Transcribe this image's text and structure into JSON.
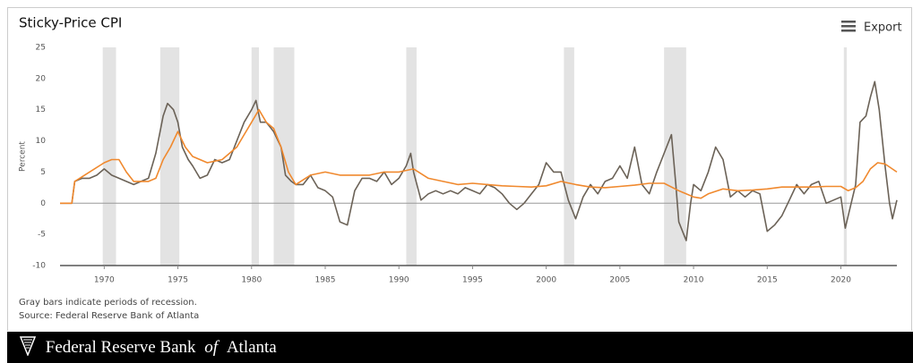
{
  "chart_data": {
    "type": "line",
    "title": "Sticky-Price CPI",
    "export_label": "Export",
    "ylabel": "Percent",
    "notes": [
      "Gray bars indicate periods of recession.",
      "Source: Federal Reserve Bank of Atlanta"
    ],
    "footer": [
      "Federal Reserve Bank",
      "of",
      "Atlanta"
    ],
    "xlim": [
      1967,
      2023.8
    ],
    "xticks": [
      1970,
      1975,
      1980,
      1985,
      1990,
      1995,
      2000,
      2005,
      2010,
      2015,
      2020
    ],
    "ylim": [
      -10,
      25
    ],
    "yticks": [
      -10,
      -5,
      0,
      5,
      10,
      15,
      20,
      25
    ],
    "recession_color": "#e3e3e3",
    "recessions": [
      [
        1969.9,
        1970.8
      ],
      [
        1973.8,
        1975.1
      ],
      [
        1980.0,
        1980.5
      ],
      [
        1981.5,
        1982.9
      ],
      [
        1990.5,
        1991.2
      ],
      [
        2001.2,
        2001.9
      ],
      [
        2008.0,
        2009.5
      ],
      [
        2020.2,
        2020.4
      ]
    ],
    "series": [
      {
        "color": "#6b6257",
        "x": [
          1967,
          1967.8,
          1968,
          1968.5,
          1969,
          1969.5,
          1970,
          1970.5,
          1971,
          1971.5,
          1972,
          1972.5,
          1973,
          1973.5,
          1974,
          1974.3,
          1974.7,
          1975,
          1975.3,
          1975.7,
          1976,
          1976.5,
          1977,
          1977.5,
          1978,
          1978.5,
          1979,
          1979.5,
          1980,
          1980.3,
          1980.6,
          1981,
          1981.5,
          1982,
          1982.3,
          1982.7,
          1983,
          1983.5,
          1984,
          1984.5,
          1985,
          1985.5,
          1986,
          1986.5,
          1987,
          1987.5,
          1988,
          1988.5,
          1989,
          1989.5,
          1990,
          1990.5,
          1990.8,
          1991,
          1991.5,
          1992,
          1992.5,
          1993,
          1993.5,
          1994,
          1994.5,
          1995,
          1995.5,
          1996,
          1996.5,
          1997,
          1997.5,
          1998,
          1998.5,
          1999,
          1999.5,
          2000,
          2000.5,
          2001,
          2001.5,
          2002,
          2002.5,
          2003,
          2003.5,
          2004,
          2004.5,
          2005,
          2005.5,
          2006,
          2006.5,
          2007,
          2007.5,
          2008,
          2008.5,
          2008.8,
          2009,
          2009.5,
          2009.8,
          2010,
          2010.5,
          2011,
          2011.5,
          2012,
          2012.5,
          2013,
          2013.5,
          2014,
          2014.5,
          2015,
          2015.5,
          2016,
          2016.5,
          2017,
          2017.5,
          2018,
          2018.5,
          2019,
          2019.5,
          2020,
          2020.3,
          2020.7,
          2021,
          2021.3,
          2021.7,
          2022,
          2022.3,
          2022.6,
          2023,
          2023.3,
          2023.5,
          2023.8
        ],
        "values": [
          0,
          0,
          3.5,
          4,
          4,
          4.5,
          5.5,
          4.5,
          4,
          3.5,
          3,
          3.5,
          4,
          8,
          14,
          16,
          15,
          13,
          9,
          7,
          6,
          4,
          4.5,
          7,
          6.5,
          7,
          10,
          13,
          15,
          16.5,
          13,
          13,
          11.5,
          9,
          4.5,
          3.5,
          3,
          3,
          4.5,
          2.5,
          2,
          1,
          -3,
          -3.5,
          2,
          4,
          4,
          3.5,
          5,
          3,
          4,
          6,
          8,
          5,
          0.5,
          1.5,
          2,
          1.5,
          2,
          1.5,
          2.5,
          2,
          1.5,
          3,
          2.5,
          1.5,
          0,
          -1,
          0,
          1.5,
          3,
          6.5,
          5,
          5,
          0.5,
          -2.5,
          1,
          3,
          1.5,
          3.5,
          4,
          6,
          4,
          9,
          3,
          1.5,
          5,
          8,
          11,
          3,
          -3,
          -6,
          0,
          3,
          2,
          5,
          9,
          7,
          1,
          2,
          1,
          2,
          1.5,
          -4.5,
          -3.5,
          -2,
          0.5,
          3,
          1.5,
          3,
          3.5,
          0,
          0.5,
          1,
          -4,
          0,
          3,
          13,
          14,
          17,
          19.5,
          15,
          6,
          0,
          -2.5,
          0.5
        ]
      },
      {
        "color": "#f0892e",
        "x": [
          1967,
          1967.8,
          1968,
          1969,
          1970,
          1970.5,
          1971,
          1971.5,
          1972,
          1973,
          1973.5,
          1974,
          1974.5,
          1975,
          1975.5,
          1976,
          1977,
          1978,
          1979,
          1979.5,
          1980,
          1980.5,
          1981,
          1981.5,
          1982,
          1982.5,
          1983,
          1984,
          1985,
          1986,
          1987,
          1988,
          1989,
          1990,
          1991,
          1992,
          1993,
          1994,
          1995,
          1996,
          1997,
          1998,
          1999,
          2000,
          2001,
          2002,
          2003,
          2004,
          2005,
          2006,
          2007,
          2008,
          2009,
          2010,
          2010.5,
          2011,
          2012,
          2013,
          2014,
          2015,
          2016,
          2017,
          2018,
          2019,
          2020,
          2020.5,
          2021,
          2021.5,
          2022,
          2022.5,
          2023,
          2023.8
        ],
        "values": [
          0,
          0,
          3.5,
          5,
          6.5,
          7,
          7,
          5,
          3.5,
          3.5,
          4,
          7,
          9,
          11.5,
          9,
          7.5,
          6.5,
          7,
          9,
          11,
          13,
          15,
          13,
          12,
          9,
          5,
          3,
          4.5,
          5,
          4.5,
          4.5,
          4.5,
          5,
          5,
          5.5,
          4,
          3.5,
          3,
          3.2,
          3,
          2.8,
          2.7,
          2.6,
          2.8,
          3.5,
          3,
          2.6,
          2.5,
          2.7,
          2.9,
          3.2,
          3.2,
          2,
          1,
          0.8,
          1.5,
          2.3,
          2,
          2.1,
          2.3,
          2.6,
          2.6,
          2.6,
          2.7,
          2.7,
          2,
          2.5,
          3.5,
          5.5,
          6.5,
          6.3,
          5
        ]
      }
    ]
  }
}
